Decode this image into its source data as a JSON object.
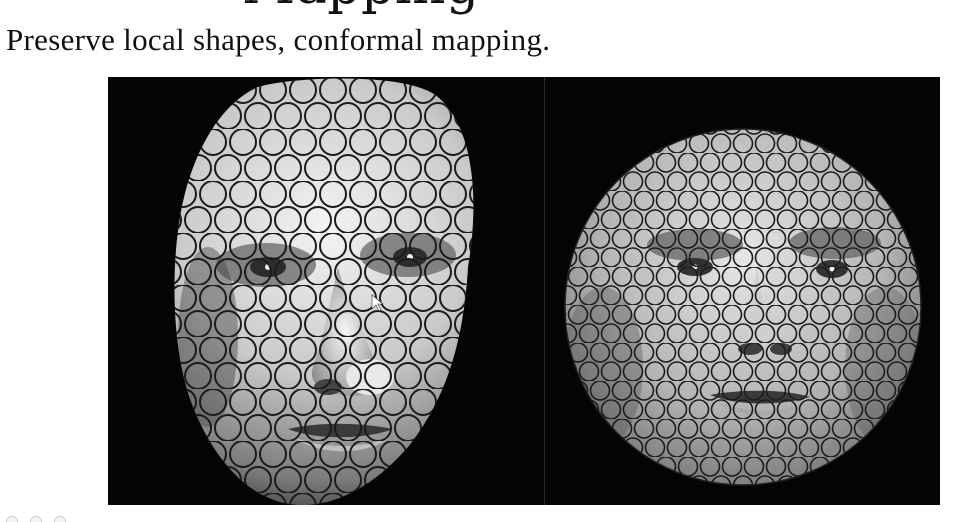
{
  "slide": {
    "title": "Mapping",
    "subtitle": "Preserve local shapes, conformal mapping."
  },
  "figure": {
    "left_panel": "face-3d-circle-packing",
    "right_panel": "face-disk-conformal-map"
  },
  "colors": {
    "background": "#ffffff",
    "figure_bg": "#000000",
    "circle_stroke": "#1b1b1b",
    "skin_light": "#f1f1f1",
    "skin_dark": "#4a4a4a"
  }
}
